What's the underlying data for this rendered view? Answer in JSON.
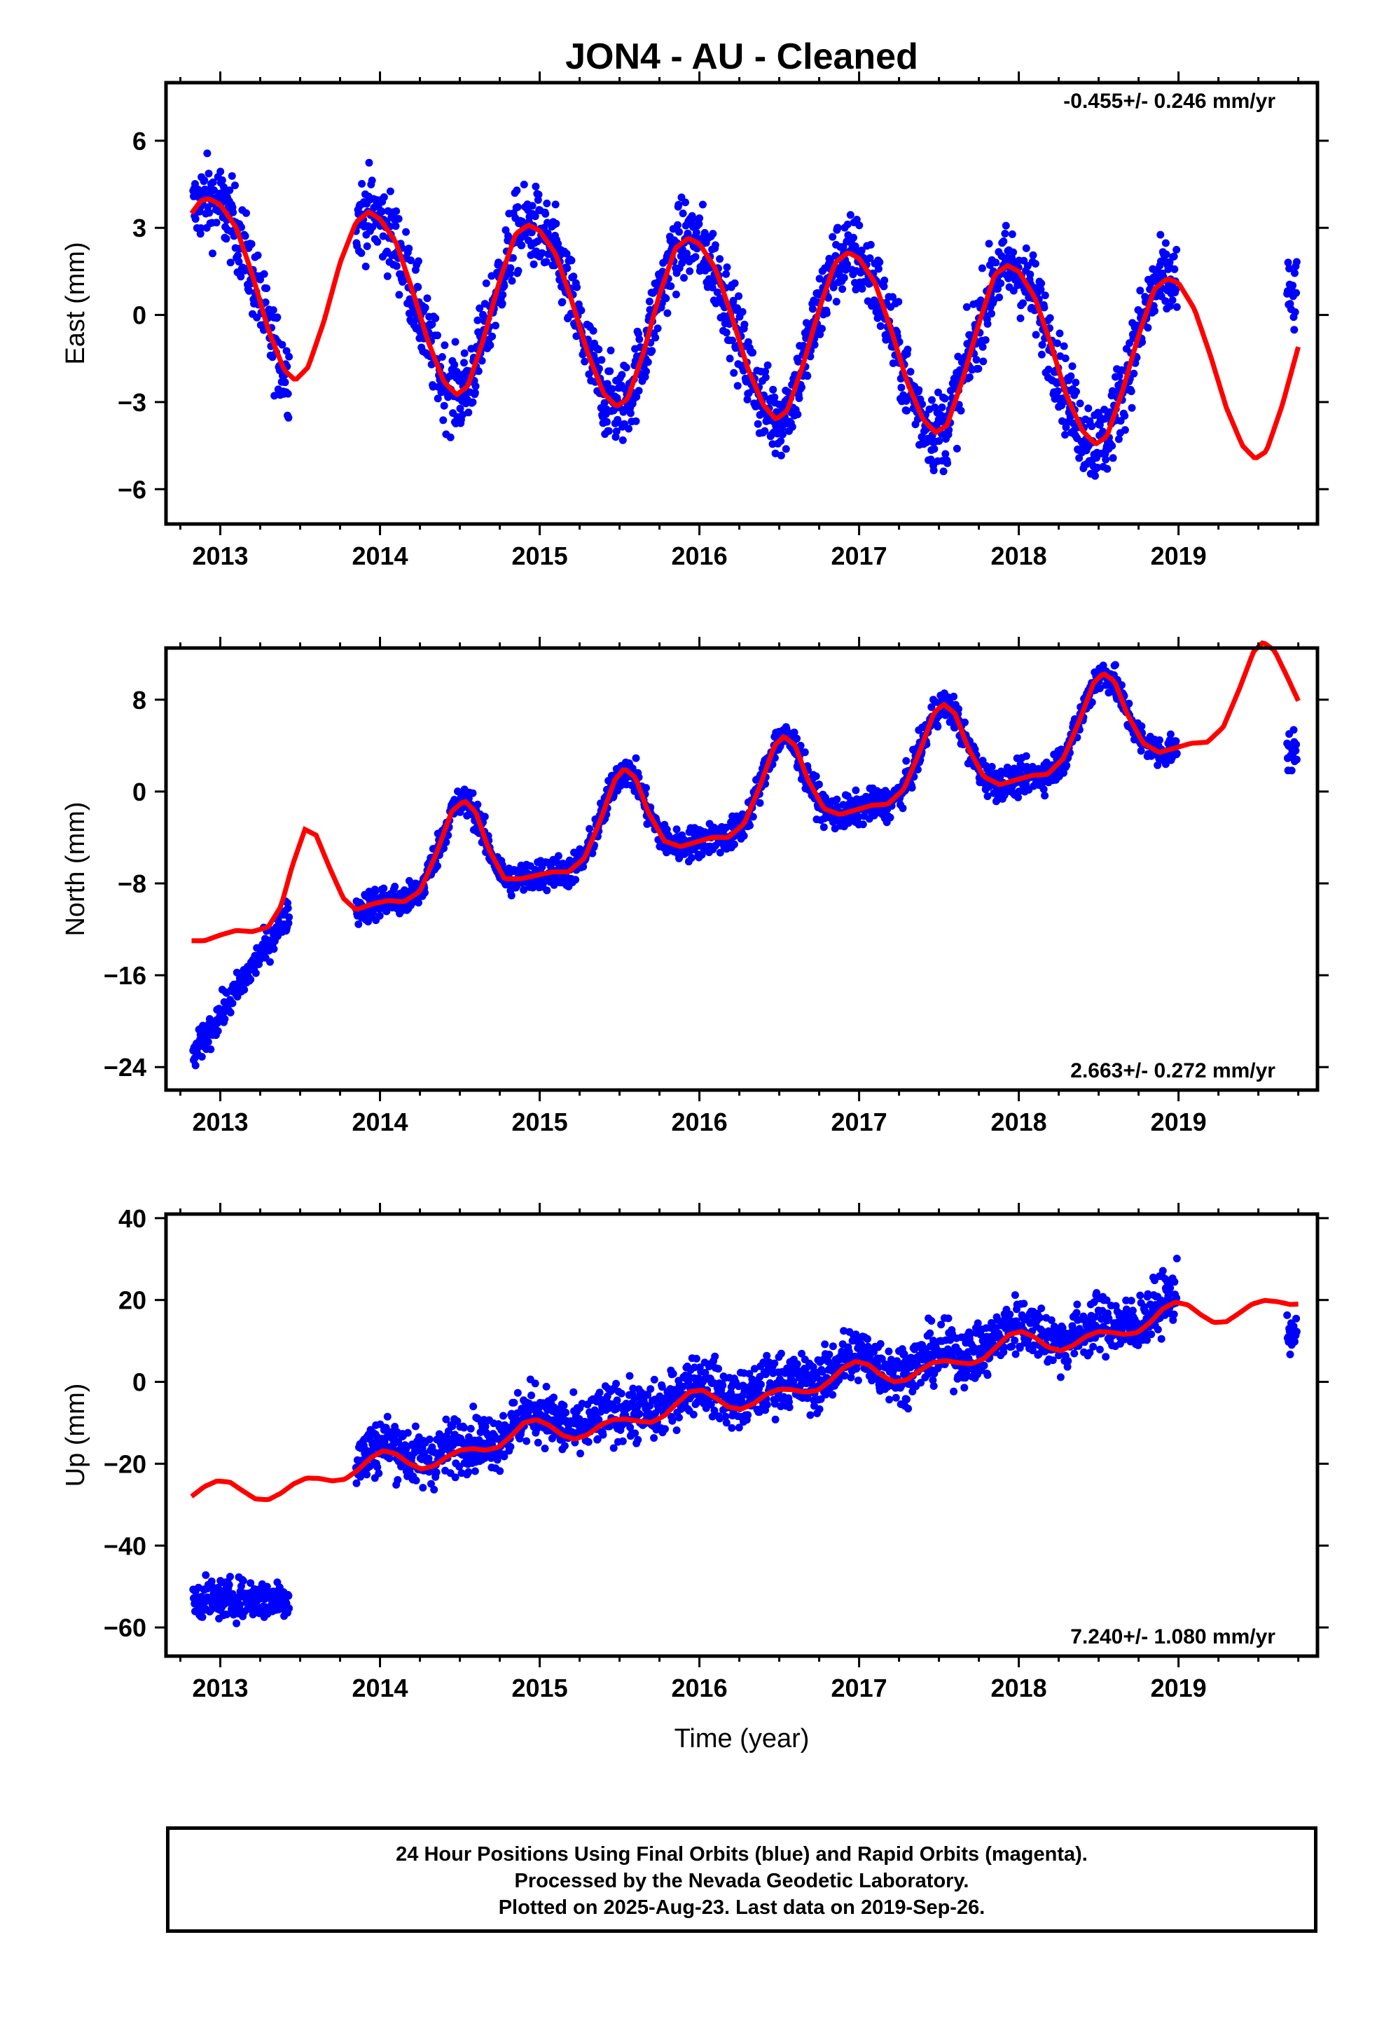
{
  "title": "JON4  - AU - Cleaned",
  "colors": {
    "points": "#0000ff",
    "model": "#ff0000",
    "frame": "#000000"
  },
  "chart_data": [
    {
      "type": "scatter",
      "name": "east",
      "ylabel": "East (mm)",
      "xlabel": "",
      "xlim": [
        2012.66,
        2019.87
      ],
      "ylim": [
        -7.2,
        8.0
      ],
      "yticks": [
        -6,
        -3,
        0,
        3,
        6
      ],
      "xticks": [
        2013,
        2014,
        2015,
        2016,
        2017,
        2018,
        2019
      ],
      "rate": "-0.455+/- 0.246 mm/yr",
      "rate_position": "top-right",
      "grid": false,
      "observations": {
        "scatter_noise": 1.0,
        "segments": [
          {
            "start": 2012.83,
            "end": 2013.43,
            "per_year": 330
          },
          {
            "start": 2013.85,
            "end": 2018.99,
            "per_year": 330
          },
          {
            "start": 2019.68,
            "end": 2019.74,
            "per_year": 330
          }
        ]
      },
      "model": {
        "t0": 2013.0,
        "offset": 0.65,
        "trend": -0.455,
        "a1": 2.9,
        "a2": 0.35,
        "peaks": [
          [
            2012.8,
            4.2
          ],
          [
            2013.85,
            3.8
          ],
          [
            2014.85,
            3.2
          ],
          [
            2015.85,
            2.8
          ],
          [
            2016.85,
            2.3
          ],
          [
            2017.88,
            1.8
          ],
          [
            2018.92,
            1.3
          ]
        ],
        "troughs": [
          [
            2013.45,
            -2.3
          ],
          [
            2014.45,
            -2.7
          ],
          [
            2015.45,
            -3.2
          ],
          [
            2016.45,
            -3.6
          ],
          [
            2017.48,
            -4.1
          ],
          [
            2018.5,
            -4.5
          ],
          [
            2019.48,
            -5.0
          ]
        ],
        "curve": [
          [
            2012.82,
            3.5
          ],
          [
            2012.88,
            3.95
          ],
          [
            2012.93,
            4.0
          ],
          [
            2013.0,
            3.8
          ],
          [
            2013.1,
            3.0
          ],
          [
            2013.2,
            1.4
          ],
          [
            2013.3,
            -0.5
          ],
          [
            2013.4,
            -1.9
          ],
          [
            2013.47,
            -2.25
          ],
          [
            2013.55,
            -1.8
          ],
          [
            2013.65,
            -0.2
          ],
          [
            2013.75,
            1.8
          ],
          [
            2013.85,
            3.2
          ],
          [
            2013.93,
            3.55
          ],
          [
            2014.0,
            3.3
          ],
          [
            2014.1,
            2.5
          ],
          [
            2014.2,
            0.9
          ],
          [
            2014.3,
            -0.9
          ],
          [
            2014.4,
            -2.3
          ],
          [
            2014.48,
            -2.75
          ],
          [
            2014.55,
            -2.45
          ],
          [
            2014.65,
            -0.8
          ],
          [
            2014.75,
            1.2
          ],
          [
            2014.85,
            2.8
          ],
          [
            2014.93,
            3.1
          ],
          [
            2015.0,
            2.9
          ],
          [
            2015.1,
            2.1
          ],
          [
            2015.2,
            0.5
          ],
          [
            2015.3,
            -1.3
          ],
          [
            2015.4,
            -2.7
          ],
          [
            2015.48,
            -3.15
          ],
          [
            2015.55,
            -2.9
          ],
          [
            2015.65,
            -1.3
          ],
          [
            2015.75,
            0.7
          ],
          [
            2015.85,
            2.3
          ],
          [
            2015.93,
            2.65
          ],
          [
            2016.0,
            2.45
          ],
          [
            2016.1,
            1.6
          ],
          [
            2016.2,
            0.0
          ],
          [
            2016.3,
            -1.8
          ],
          [
            2016.4,
            -3.1
          ],
          [
            2016.48,
            -3.6
          ],
          [
            2016.55,
            -3.3
          ],
          [
            2016.65,
            -1.7
          ],
          [
            2016.75,
            0.2
          ],
          [
            2016.85,
            1.8
          ],
          [
            2016.93,
            2.15
          ],
          [
            2017.0,
            1.95
          ],
          [
            2017.1,
            1.1
          ],
          [
            2017.2,
            -0.5
          ],
          [
            2017.3,
            -2.3
          ],
          [
            2017.4,
            -3.6
          ],
          [
            2017.48,
            -4.05
          ],
          [
            2017.55,
            -3.8
          ],
          [
            2017.65,
            -2.2
          ],
          [
            2017.75,
            -0.3
          ],
          [
            2017.85,
            1.4
          ],
          [
            2017.93,
            1.7
          ],
          [
            2018.0,
            1.5
          ],
          [
            2018.1,
            0.6
          ],
          [
            2018.2,
            -1.0
          ],
          [
            2018.3,
            -2.8
          ],
          [
            2018.4,
            -4.0
          ],
          [
            2018.48,
            -4.45
          ],
          [
            2018.55,
            -4.2
          ],
          [
            2018.65,
            -2.6
          ],
          [
            2018.75,
            -0.7
          ],
          [
            2018.85,
            0.9
          ],
          [
            2018.93,
            1.25
          ],
          [
            2019.0,
            1.1
          ],
          [
            2019.1,
            0.2
          ],
          [
            2019.2,
            -1.4
          ],
          [
            2019.3,
            -3.2
          ],
          [
            2019.4,
            -4.5
          ],
          [
            2019.48,
            -4.95
          ],
          [
            2019.55,
            -4.7
          ],
          [
            2019.65,
            -3.1
          ],
          [
            2019.75,
            -1.1
          ]
        ]
      }
    },
    {
      "type": "scatter",
      "name": "north",
      "ylabel": "North (mm)",
      "xlabel": "",
      "xlim": [
        2012.66,
        2019.87
      ],
      "ylim": [
        -26,
        12.5
      ],
      "yticks": [
        -24,
        -16,
        -8,
        0,
        8
      ],
      "xticks": [
        2013,
        2014,
        2015,
        2016,
        2017,
        2018,
        2019
      ],
      "rate": "2.663+/- 0.272 mm/yr",
      "rate_position": "bottom-right",
      "grid": false,
      "observations": {
        "scatter_noise": 1.0,
        "segments": [
          {
            "start": 2012.83,
            "end": 2013.43,
            "per_year": 330
          },
          {
            "start": 2013.85,
            "end": 2018.99,
            "per_year": 330
          },
          {
            "start": 2019.68,
            "end": 2019.74,
            "per_year": 330
          }
        ]
      },
      "model": {
        "curve": [
          [
            2012.82,
            -13.0
          ],
          [
            2012.9,
            -13.0
          ],
          [
            2013.0,
            -12.5
          ],
          [
            2013.1,
            -12.1
          ],
          [
            2013.2,
            -12.2
          ],
          [
            2013.3,
            -11.8
          ],
          [
            2013.38,
            -10.0
          ],
          [
            2013.45,
            -6.5
          ],
          [
            2013.53,
            -3.3
          ],
          [
            2013.6,
            -3.8
          ],
          [
            2013.68,
            -6.5
          ],
          [
            2013.77,
            -9.3
          ],
          [
            2013.85,
            -10.3
          ],
          [
            2013.95,
            -9.8
          ],
          [
            2014.05,
            -9.5
          ],
          [
            2014.15,
            -9.6
          ],
          [
            2014.25,
            -8.7
          ],
          [
            2014.35,
            -5.5
          ],
          [
            2014.45,
            -1.7
          ],
          [
            2014.53,
            -0.8
          ],
          [
            2014.6,
            -1.8
          ],
          [
            2014.68,
            -5.0
          ],
          [
            2014.78,
            -7.6
          ],
          [
            2014.88,
            -7.6
          ],
          [
            2014.98,
            -7.3
          ],
          [
            2015.08,
            -7.0
          ],
          [
            2015.18,
            -7.0
          ],
          [
            2015.28,
            -5.8
          ],
          [
            2015.38,
            -2.5
          ],
          [
            2015.47,
            1.0
          ],
          [
            2015.53,
            2.0
          ],
          [
            2015.6,
            1.2
          ],
          [
            2015.68,
            -1.8
          ],
          [
            2015.78,
            -4.3
          ],
          [
            2015.88,
            -4.8
          ],
          [
            2015.98,
            -4.4
          ],
          [
            2016.08,
            -4.0
          ],
          [
            2016.18,
            -4.0
          ],
          [
            2016.28,
            -2.8
          ],
          [
            2016.38,
            0.5
          ],
          [
            2016.47,
            4.0
          ],
          [
            2016.53,
            4.8
          ],
          [
            2016.6,
            4.0
          ],
          [
            2016.68,
            1.0
          ],
          [
            2016.78,
            -1.5
          ],
          [
            2016.88,
            -2.0
          ],
          [
            2016.98,
            -1.6
          ],
          [
            2017.08,
            -1.2
          ],
          [
            2017.18,
            -1.1
          ],
          [
            2017.28,
            0.2
          ],
          [
            2017.38,
            3.5
          ],
          [
            2017.47,
            6.9
          ],
          [
            2017.53,
            7.6
          ],
          [
            2017.6,
            6.8
          ],
          [
            2017.68,
            3.9
          ],
          [
            2017.78,
            1.3
          ],
          [
            2017.88,
            0.6
          ],
          [
            2017.98,
            1.0
          ],
          [
            2018.08,
            1.4
          ],
          [
            2018.18,
            1.5
          ],
          [
            2018.28,
            2.9
          ],
          [
            2018.38,
            6.2
          ],
          [
            2018.47,
            9.5
          ],
          [
            2018.53,
            10.3
          ],
          [
            2018.6,
            9.6
          ],
          [
            2018.68,
            6.7
          ],
          [
            2018.78,
            4.2
          ],
          [
            2018.88,
            3.4
          ],
          [
            2018.98,
            3.8
          ],
          [
            2019.08,
            4.2
          ],
          [
            2019.18,
            4.3
          ],
          [
            2019.28,
            5.6
          ],
          [
            2019.38,
            8.9
          ],
          [
            2019.47,
            12.2
          ],
          [
            2019.53,
            13.0
          ],
          [
            2019.6,
            12.3
          ],
          [
            2019.68,
            10.0
          ],
          [
            2019.75,
            7.9
          ]
        ]
      }
    },
    {
      "type": "scatter",
      "name": "up",
      "ylabel": "Up (mm)",
      "xlabel": "Time (year)",
      "xlim": [
        2012.66,
        2019.87
      ],
      "ylim": [
        -67,
        41
      ],
      "yticks": [
        -60,
        -40,
        -20,
        0,
        20,
        40
      ],
      "xticks": [
        2013,
        2014,
        2015,
        2016,
        2017,
        2018,
        2019
      ],
      "rate": "7.240+/- 1.080 mm/yr",
      "rate_position": "bottom-right",
      "grid": false,
      "observations": {
        "scatter_noise": 5.0,
        "segments": [
          {
            "start": 2012.83,
            "end": 2013.43,
            "per_year": 330
          },
          {
            "start": 2013.85,
            "end": 2018.99,
            "per_year": 330
          },
          {
            "start": 2019.68,
            "end": 2019.74,
            "per_year": 330
          }
        ]
      },
      "model": {
        "curve": [
          [
            2012.82,
            -28.0
          ],
          [
            2012.9,
            -25.6
          ],
          [
            2012.98,
            -24.2
          ],
          [
            2013.06,
            -24.5
          ],
          [
            2013.14,
            -26.6
          ],
          [
            2013.22,
            -28.6
          ],
          [
            2013.3,
            -28.8
          ],
          [
            2013.38,
            -27.2
          ],
          [
            2013.46,
            -24.9
          ],
          [
            2013.54,
            -23.5
          ],
          [
            2013.62,
            -23.6
          ],
          [
            2013.7,
            -24.2
          ],
          [
            2013.78,
            -23.8
          ],
          [
            2013.86,
            -21.6
          ],
          [
            2013.94,
            -18.6
          ],
          [
            2014.02,
            -16.8
          ],
          [
            2014.1,
            -17.6
          ],
          [
            2014.18,
            -19.9
          ],
          [
            2014.26,
            -21.3
          ],
          [
            2014.34,
            -20.5
          ],
          [
            2014.42,
            -18.3
          ],
          [
            2014.5,
            -16.7
          ],
          [
            2014.58,
            -16.3
          ],
          [
            2014.66,
            -16.7
          ],
          [
            2014.74,
            -16.0
          ],
          [
            2014.82,
            -13.3
          ],
          [
            2014.9,
            -10.0
          ],
          [
            2014.98,
            -9.2
          ],
          [
            2015.06,
            -10.6
          ],
          [
            2015.14,
            -13.0
          ],
          [
            2015.22,
            -14.0
          ],
          [
            2015.3,
            -12.9
          ],
          [
            2015.38,
            -10.6
          ],
          [
            2015.46,
            -9.2
          ],
          [
            2015.54,
            -9.1
          ],
          [
            2015.62,
            -9.6
          ],
          [
            2015.7,
            -9.9
          ],
          [
            2015.78,
            -8.3
          ],
          [
            2015.86,
            -5.2
          ],
          [
            2015.94,
            -2.4
          ],
          [
            2016.02,
            -2.0
          ],
          [
            2016.1,
            -3.9
          ],
          [
            2016.18,
            -6.1
          ],
          [
            2016.26,
            -6.7
          ],
          [
            2016.34,
            -5.3
          ],
          [
            2016.42,
            -3.0
          ],
          [
            2016.5,
            -1.8
          ],
          [
            2016.58,
            -1.9
          ],
          [
            2016.66,
            -2.5
          ],
          [
            2016.74,
            -2.1
          ],
          [
            2016.82,
            0.3
          ],
          [
            2016.9,
            3.4
          ],
          [
            2016.98,
            5.0
          ],
          [
            2017.06,
            4.2
          ],
          [
            2017.14,
            1.6
          ],
          [
            2017.22,
            0.0
          ],
          [
            2017.3,
            0.5
          ],
          [
            2017.38,
            2.8
          ],
          [
            2017.46,
            4.7
          ],
          [
            2017.54,
            5.2
          ],
          [
            2017.62,
            4.7
          ],
          [
            2017.7,
            4.4
          ],
          [
            2017.78,
            5.6
          ],
          [
            2017.86,
            8.6
          ],
          [
            2017.94,
            11.6
          ],
          [
            2018.02,
            12.3
          ],
          [
            2018.1,
            10.9
          ],
          [
            2018.18,
            8.5
          ],
          [
            2018.26,
            7.6
          ],
          [
            2018.34,
            8.9
          ],
          [
            2018.42,
            11.1
          ],
          [
            2018.5,
            12.3
          ],
          [
            2018.58,
            12.1
          ],
          [
            2018.66,
            11.6
          ],
          [
            2018.74,
            12.0
          ],
          [
            2018.82,
            14.4
          ],
          [
            2018.9,
            17.8
          ],
          [
            2018.98,
            19.5
          ],
          [
            2019.06,
            18.8
          ],
          [
            2019.14,
            16.4
          ],
          [
            2019.22,
            14.5
          ],
          [
            2019.3,
            14.7
          ],
          [
            2019.38,
            16.8
          ],
          [
            2019.46,
            19.0
          ],
          [
            2019.54,
            19.9
          ],
          [
            2019.62,
            19.6
          ],
          [
            2019.7,
            18.9
          ],
          [
            2019.75,
            19.0
          ]
        ]
      },
      "overrides": [
        {
          "start": 2012.83,
          "end": 2013.43,
          "level": -53,
          "noise": 3.4
        }
      ]
    }
  ],
  "caption": {
    "line1": "24 Hour Positions Using Final Orbits (blue) and Rapid Orbits (magenta).",
    "line2": "Processed by the Nevada Geodetic Laboratory.",
    "line3": "Plotted on 2025-Aug-23. Last data on 2019-Sep-26."
  }
}
